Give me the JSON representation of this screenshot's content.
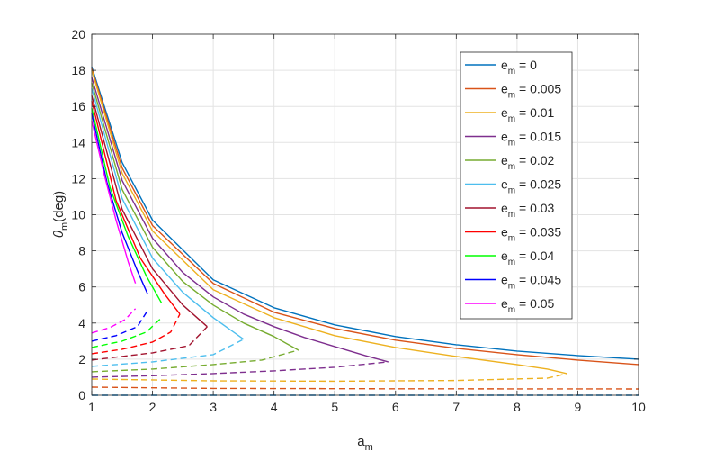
{
  "chart_data": {
    "type": "line",
    "xlabel": {
      "main": "a",
      "sub": "m"
    },
    "ylabel": {
      "symbol": "θ",
      "sub": "m",
      "rest": "(deg)"
    },
    "xlim": [
      1,
      10
    ],
    "ylim": [
      0,
      20
    ],
    "x_ticks": [
      "1",
      "2",
      "3",
      "4",
      "5",
      "6",
      "7",
      "8",
      "9",
      "10"
    ],
    "y_ticks": [
      "0",
      "2",
      "4",
      "6",
      "8",
      "10",
      "12",
      "14",
      "16",
      "18",
      "20"
    ],
    "grid": true,
    "legend_position": "top-right",
    "legend_label_parts": {
      "main": "e",
      "sub": "m",
      "sep": " = "
    },
    "series": [
      {
        "name": "0",
        "color": "#0072BD",
        "tip": [
          10.0,
          0.0
        ],
        "solid": [
          [
            1.0,
            18.2
          ],
          [
            1.5,
            12.9
          ],
          [
            2.0,
            9.7
          ],
          [
            3.0,
            6.4
          ],
          [
            4.0,
            4.85
          ],
          [
            5.0,
            3.9
          ],
          [
            6.0,
            3.25
          ],
          [
            7.0,
            2.8
          ],
          [
            8.0,
            2.45
          ],
          [
            9.0,
            2.2
          ],
          [
            10.0,
            2.0
          ]
        ],
        "dashed": [
          [
            1.0,
            0.0
          ],
          [
            10.0,
            0.0
          ]
        ]
      },
      {
        "name": "0.005",
        "color": "#D95319",
        "tip": [
          10.0,
          0.35
        ],
        "solid": [
          [
            1.0,
            18.1
          ],
          [
            1.5,
            12.6
          ],
          [
            2.0,
            9.4
          ],
          [
            3.0,
            6.2
          ],
          [
            4.0,
            4.6
          ],
          [
            5.0,
            3.7
          ],
          [
            6.0,
            3.05
          ],
          [
            7.0,
            2.6
          ],
          [
            8.0,
            2.25
          ],
          [
            9.0,
            1.95
          ],
          [
            10.0,
            1.7
          ]
        ],
        "dashed": [
          [
            1.0,
            0.45
          ],
          [
            3.0,
            0.38
          ],
          [
            6.0,
            0.36
          ],
          [
            10.0,
            0.35
          ]
        ]
      },
      {
        "name": "0.01",
        "color": "#EDB120",
        "tip": [
          8.82,
          1.2
        ],
        "solid": [
          [
            1.0,
            18.0
          ],
          [
            1.5,
            12.3
          ],
          [
            2.0,
            9.1
          ],
          [
            3.0,
            5.85
          ],
          [
            4.0,
            4.3
          ],
          [
            5.0,
            3.3
          ],
          [
            6.0,
            2.65
          ],
          [
            7.0,
            2.15
          ],
          [
            8.0,
            1.7
          ],
          [
            8.5,
            1.45
          ],
          [
            8.82,
            1.2
          ]
        ],
        "dashed": [
          [
            1.0,
            0.9
          ],
          [
            3.0,
            0.8
          ],
          [
            5.0,
            0.78
          ],
          [
            7.0,
            0.82
          ],
          [
            8.5,
            0.95
          ],
          [
            8.82,
            1.2
          ]
        ]
      },
      {
        "name": "0.015",
        "color": "#7E2F8E",
        "tip": [
          5.88,
          1.85
        ],
        "solid": [
          [
            1.0,
            17.6
          ],
          [
            1.5,
            11.9
          ],
          [
            2.0,
            8.7
          ],
          [
            2.5,
            6.8
          ],
          [
            3.0,
            5.45
          ],
          [
            3.5,
            4.5
          ],
          [
            4.0,
            3.8
          ],
          [
            4.5,
            3.2
          ],
          [
            5.0,
            2.7
          ],
          [
            5.5,
            2.2
          ],
          [
            5.88,
            1.85
          ]
        ],
        "dashed": [
          [
            1.0,
            1.0
          ],
          [
            2.0,
            1.08
          ],
          [
            3.0,
            1.2
          ],
          [
            4.0,
            1.35
          ],
          [
            5.0,
            1.55
          ],
          [
            5.88,
            1.85
          ]
        ]
      },
      {
        "name": "0.02",
        "color": "#77AC30",
        "tip": [
          4.4,
          2.5
        ],
        "solid": [
          [
            1.0,
            17.3
          ],
          [
            1.5,
            11.4
          ],
          [
            2.0,
            8.2
          ],
          [
            2.5,
            6.3
          ],
          [
            3.0,
            5.0
          ],
          [
            3.5,
            4.0
          ],
          [
            4.0,
            3.25
          ],
          [
            4.4,
            2.5
          ]
        ],
        "dashed": [
          [
            1.0,
            1.3
          ],
          [
            2.0,
            1.45
          ],
          [
            3.0,
            1.7
          ],
          [
            3.8,
            1.95
          ],
          [
            4.4,
            2.5
          ]
        ]
      },
      {
        "name": "0.025",
        "color": "#4DBEEE",
        "tip": [
          3.5,
          3.1
        ],
        "solid": [
          [
            1.0,
            17.0
          ],
          [
            1.5,
            10.9
          ],
          [
            2.0,
            7.6
          ],
          [
            2.5,
            5.7
          ],
          [
            3.0,
            4.3
          ],
          [
            3.5,
            3.1
          ]
        ],
        "dashed": [
          [
            1.0,
            1.6
          ],
          [
            2.0,
            1.85
          ],
          [
            3.0,
            2.25
          ],
          [
            3.5,
            3.1
          ]
        ]
      },
      {
        "name": "0.03",
        "color": "#A2142F",
        "tip": [
          2.9,
          3.8
        ],
        "solid": [
          [
            1.0,
            16.6
          ],
          [
            1.5,
            10.3
          ],
          [
            2.0,
            7.0
          ],
          [
            2.5,
            5.0
          ],
          [
            2.9,
            3.8
          ]
        ],
        "dashed": [
          [
            1.0,
            1.95
          ],
          [
            2.0,
            2.35
          ],
          [
            2.6,
            2.75
          ],
          [
            2.9,
            3.8
          ]
        ]
      },
      {
        "name": "0.035",
        "color": "#FF0000",
        "tip": [
          2.45,
          4.5
        ],
        "solid": [
          [
            1.0,
            16.3
          ],
          [
            1.4,
            10.8
          ],
          [
            1.8,
            7.6
          ],
          [
            2.2,
            5.6
          ],
          [
            2.45,
            4.5
          ]
        ],
        "dashed": [
          [
            1.0,
            2.3
          ],
          [
            1.5,
            2.55
          ],
          [
            2.0,
            2.95
          ],
          [
            2.3,
            3.5
          ],
          [
            2.45,
            4.5
          ]
        ]
      },
      {
        "name": "0.04",
        "color": "#00FF00",
        "tip": [
          2.15,
          5.1
        ],
        "solid": [
          [
            1.0,
            15.9
          ],
          [
            1.3,
            11.5
          ],
          [
            1.6,
            8.8
          ],
          [
            1.9,
            6.6
          ],
          [
            2.15,
            5.1
          ]
        ],
        "dashed": [
          [
            1.0,
            2.65
          ],
          [
            1.5,
            3.0
          ],
          [
            1.9,
            3.5
          ],
          [
            2.15,
            4.3
          ]
        ]
      },
      {
        "name": "0.045",
        "color": "#0000FF",
        "tip": [
          1.92,
          5.6
        ],
        "solid": [
          [
            1.0,
            15.6
          ],
          [
            1.25,
            11.8
          ],
          [
            1.5,
            9.0
          ],
          [
            1.75,
            6.9
          ],
          [
            1.92,
            5.6
          ]
        ],
        "dashed": [
          [
            1.0,
            3.0
          ],
          [
            1.4,
            3.3
          ],
          [
            1.75,
            3.8
          ],
          [
            1.92,
            4.7
          ]
        ]
      },
      {
        "name": "0.05",
        "color": "#FF00FF",
        "tip": [
          1.72,
          6.2
        ],
        "solid": [
          [
            1.0,
            15.2
          ],
          [
            1.2,
            12.3
          ],
          [
            1.4,
            9.7
          ],
          [
            1.6,
            7.4
          ],
          [
            1.72,
            6.2
          ]
        ],
        "dashed": [
          [
            1.0,
            3.45
          ],
          [
            1.3,
            3.75
          ],
          [
            1.55,
            4.2
          ],
          [
            1.72,
            4.8
          ]
        ]
      }
    ]
  }
}
